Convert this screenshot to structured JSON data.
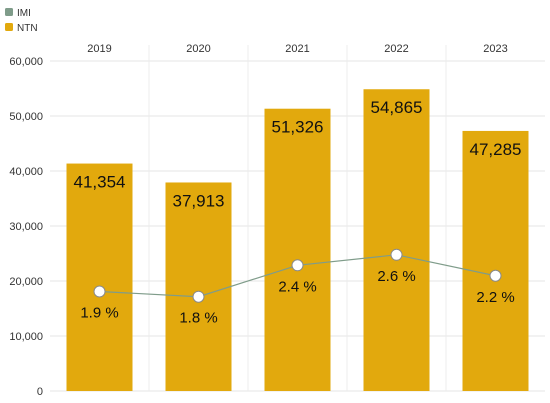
{
  "chart_data": {
    "type": "bar",
    "categories": [
      "2019",
      "2020",
      "2021",
      "2022",
      "2023"
    ],
    "series": [
      {
        "name": "NTN",
        "type": "bar",
        "color": "#E2A90D",
        "values": [
          41354,
          37913,
          51326,
          54865,
          47285
        ],
        "labels": [
          "41,354",
          "37,913",
          "51,326",
          "54,865",
          "47,285"
        ]
      },
      {
        "name": "IMI",
        "type": "line",
        "color": "#7F9C8A",
        "values": [
          1.9,
          1.8,
          2.4,
          2.6,
          2.2
        ],
        "labels": [
          "1.9 %",
          "1.8 %",
          "2.4 %",
          "2.6 %",
          "2.2 %"
        ]
      }
    ],
    "ylim": [
      0,
      60000
    ],
    "y_ticks": [
      0,
      10000,
      20000,
      30000,
      40000,
      50000,
      60000
    ],
    "y_tick_labels": [
      "0",
      "10,000",
      "20,000",
      "30,000",
      "40,000",
      "50,000",
      "60,000"
    ],
    "grid": true,
    "legend": {
      "placement": "top-left",
      "entries": [
        "IMI",
        "NTN"
      ]
    },
    "category_axis_position": "top"
  }
}
